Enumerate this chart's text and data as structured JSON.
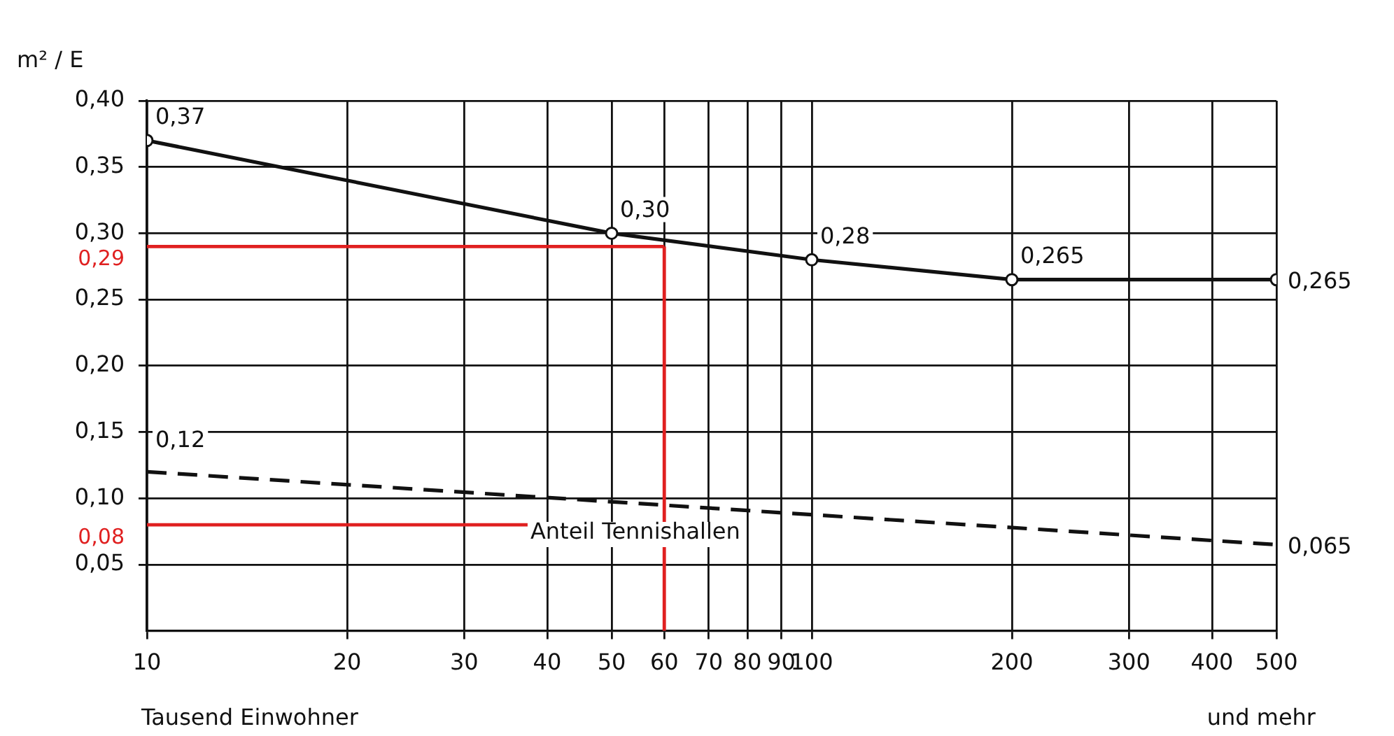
{
  "chart_data": {
    "type": "line",
    "xlabel": "Tausend Einwohner",
    "ylabel": "m² / E",
    "log": "x",
    "grid": true,
    "legend": false,
    "xlim": [
      10,
      500
    ],
    "xticks": [
      10,
      20,
      30,
      40,
      50,
      60,
      70,
      80,
      90,
      100,
      200,
      300,
      400,
      500
    ],
    "ylim": [
      0,
      0.4
    ],
    "yticks": [
      {
        "value": 0.05,
        "label": "0,05"
      },
      {
        "value": 0.1,
        "label": "0,10"
      },
      {
        "value": 0.15,
        "label": "0,15"
      },
      {
        "value": 0.2,
        "label": "0,20"
      },
      {
        "value": 0.25,
        "label": "0,25"
      },
      {
        "value": 0.3,
        "label": "0,30"
      },
      {
        "value": 0.35,
        "label": "0,35"
      },
      {
        "value": 0.4,
        "label": "0,40"
      }
    ],
    "series": [
      {
        "color": "#111111",
        "marker": "circle",
        "line_style": "solid",
        "x": [
          10,
          50,
          100,
          200,
          500
        ],
        "values": [
          0.37,
          0.3,
          0.28,
          0.265,
          0.265
        ],
        "value_labels": [
          "0,37",
          "0,30",
          "0,28",
          "0,265",
          "0,265"
        ]
      },
      {
        "name": "Anteil Tennishallen",
        "color": "#111111",
        "marker": "none",
        "line_style": "dashed",
        "x": [
          10,
          500
        ],
        "values": [
          0.12,
          0.065
        ],
        "value_labels": [
          "0,12",
          "0,065"
        ]
      }
    ],
    "ref_lines": [
      {
        "axis": "y",
        "value": 0.29,
        "label": "0,29",
        "color": "#e02020"
      },
      {
        "axis": "y",
        "value": 0.08,
        "label": "0,08",
        "color": "#e02020"
      },
      {
        "axis": "x",
        "value": 60,
        "color": "#e02020"
      }
    ],
    "annotations": [
      "und mehr"
    ]
  }
}
